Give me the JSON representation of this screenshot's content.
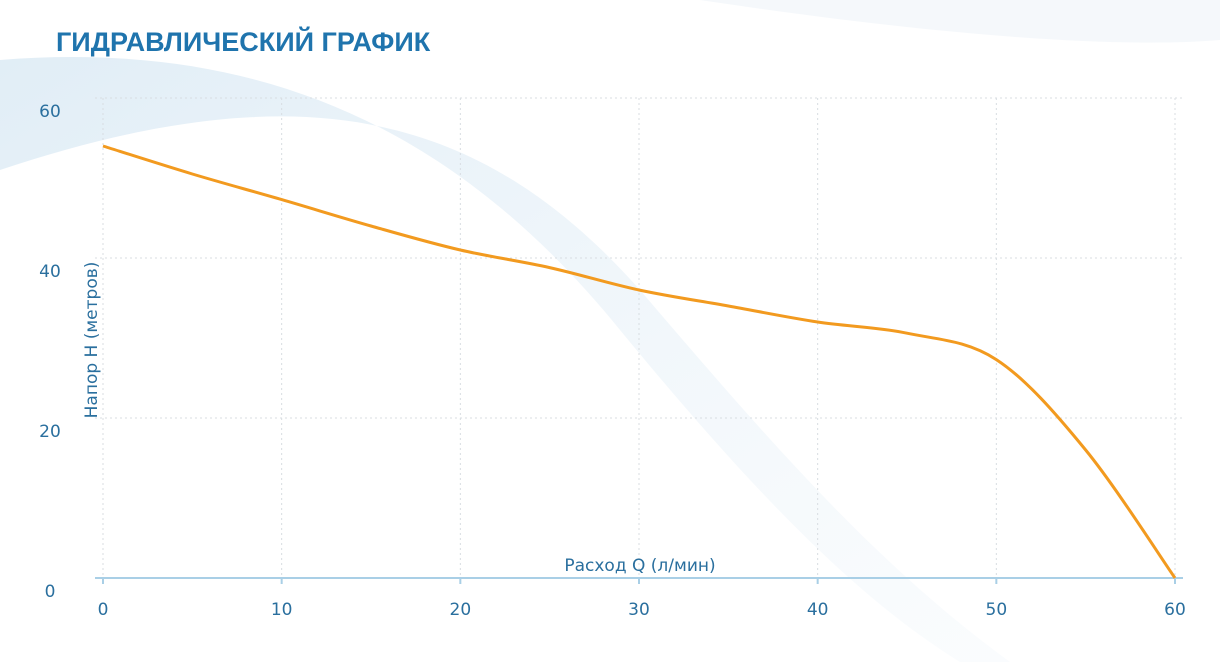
{
  "chart_data": {
    "type": "line",
    "title": "ГИДРАВЛИЧЕСКИЙ ГРАФИК",
    "x_label": "Расход Q (л/мин)",
    "y_label": "Напор H (метров)",
    "x": [
      0,
      5,
      10,
      15,
      20,
      25,
      30,
      35,
      40,
      45,
      50,
      55,
      60
    ],
    "series": [
      {
        "name": "Напор",
        "color": "#f29a1f",
        "values": [
          54,
          50.5,
          47.3,
          44,
          41,
          38.8,
          36,
          34,
          32,
          30.6,
          27.3,
          16,
          0
        ]
      }
    ],
    "xlim": [
      0,
      60
    ],
    "xticks": [
      0,
      10,
      20,
      30,
      40,
      50,
      60
    ],
    "ylim": [
      0,
      60
    ],
    "yticks": [
      0,
      20,
      40,
      60
    ],
    "grid": true
  }
}
